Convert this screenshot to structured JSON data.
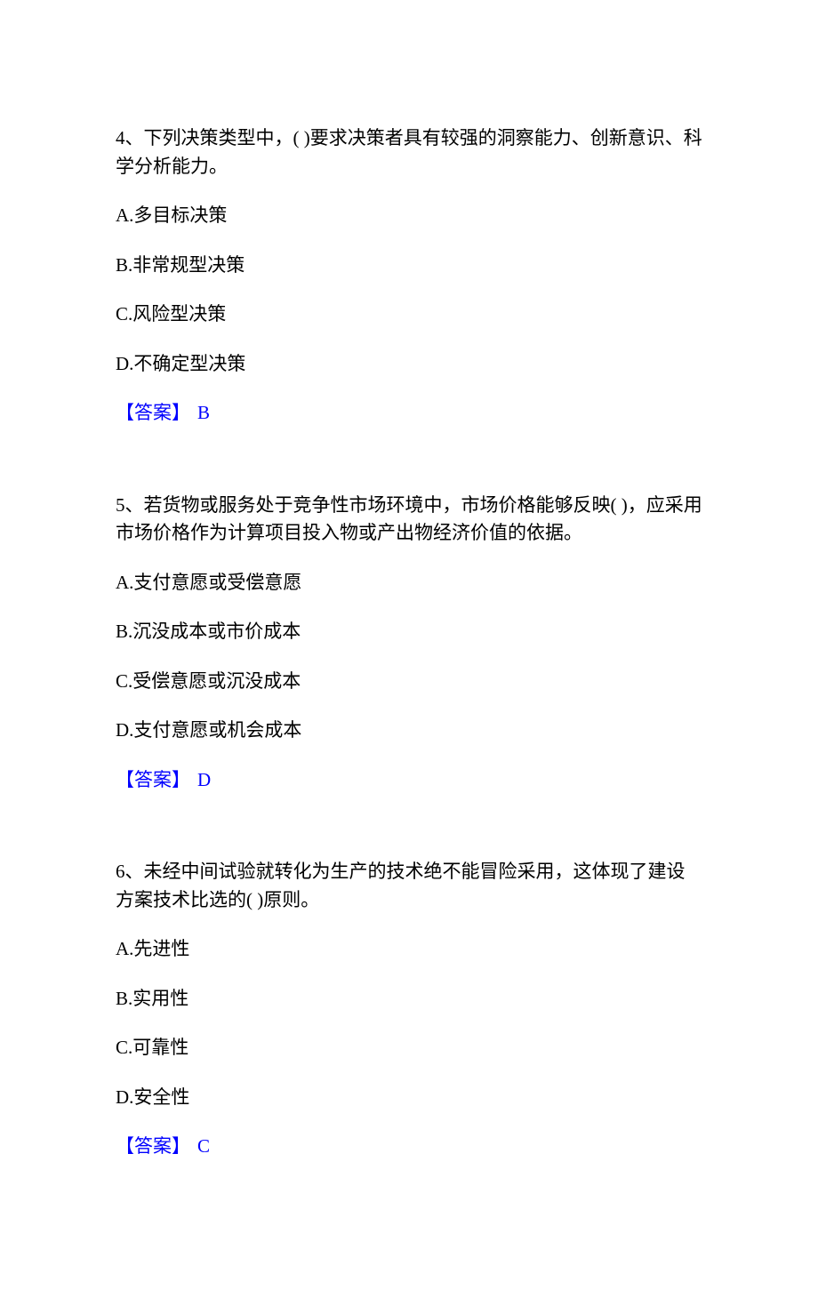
{
  "text_color": "#000000",
  "answer_color": "#0000ff",
  "background_color": "#ffffff",
  "font_size": 21,
  "questions": [
    {
      "number": "4、",
      "text": "下列决策类型中，( )要求决策者具有较强的洞察能力、创新意识、科学分析能力。",
      "options": [
        "A.多目标决策",
        "B.非常规型决策",
        "C.风险型决策",
        "D.不确定型决策"
      ],
      "answer_label": "【答案】",
      "answer_value": "B"
    },
    {
      "number": "5、",
      "text": "若货物或服务处于竞争性市场环境中，市场价格能够反映( )，应采用市场价格作为计算项目投入物或产出物经济价值的依据。",
      "options": [
        "A.支付意愿或受偿意愿",
        "B.沉没成本或市价成本",
        "C.受偿意愿或沉没成本",
        "D.支付意愿或机会成本"
      ],
      "answer_label": "【答案】",
      "answer_value": "D"
    },
    {
      "number": "6、",
      "text": "未经中间试验就转化为生产的技术绝不能冒险采用，这体现了建设方案技术比选的( )原则。",
      "options": [
        "A.先进性",
        "B.实用性",
        "C.可靠性",
        "D.安全性"
      ],
      "answer_label": "【答案】",
      "answer_value": "C"
    }
  ]
}
